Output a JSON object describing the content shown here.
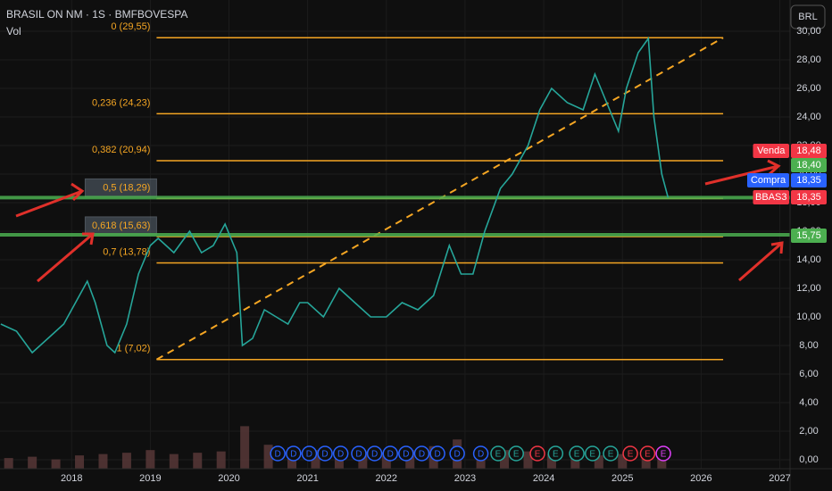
{
  "chart_data": {
    "type": "line",
    "title": "BRASIL ON NM · 1S · BMFBOVESPA",
    "volume_label": "Vol",
    "currency_button": "BRL",
    "x": [
      2017.1,
      2017.3,
      2017.5,
      2017.7,
      2017.9,
      2018.1,
      2018.2,
      2018.3,
      2018.45,
      2018.55,
      2018.7,
      2018.85,
      2019.0,
      2019.1,
      2019.3,
      2019.5,
      2019.65,
      2019.8,
      2019.95,
      2020.1,
      2020.17,
      2020.3,
      2020.45,
      2020.6,
      2020.75,
      2020.9,
      2021.0,
      2021.2,
      2021.4,
      2021.6,
      2021.8,
      2022.0,
      2022.2,
      2022.4,
      2022.6,
      2022.8,
      2022.95,
      2023.1,
      2023.25,
      2023.45,
      2023.6,
      2023.8,
      2023.95,
      2024.1,
      2024.3,
      2024.5,
      2024.65,
      2024.8,
      2024.95,
      2025.05,
      2025.2,
      2025.33,
      2025.4,
      2025.5,
      2025.58
    ],
    "series": [
      {
        "name": "BBAS3",
        "color": "#26a69a",
        "values": [
          9.5,
          9,
          7.5,
          8.5,
          9.5,
          11.5,
          12.5,
          11,
          8,
          7.5,
          9.5,
          13,
          15,
          15.5,
          14.5,
          16,
          14.5,
          15,
          16.5,
          14.5,
          8,
          8.5,
          10.5,
          10,
          9.5,
          11,
          11,
          10,
          12,
          11,
          10,
          10,
          11,
          10.5,
          11.5,
          15,
          13,
          13,
          16,
          19,
          20,
          22,
          24.5,
          26,
          25,
          24.5,
          27,
          25,
          23,
          26,
          28.5,
          29.5,
          24,
          20,
          18.35
        ]
      }
    ],
    "volume": {
      "color": "#5b3a3a",
      "x": [
        2017.2,
        2017.5,
        2017.8,
        2018.1,
        2018.4,
        2018.7,
        2019.0,
        2019.3,
        2019.6,
        2019.9,
        2020.2,
        2020.5,
        2020.8,
        2021.1,
        2021.4,
        2021.7,
        2022.0,
        2022.3,
        2022.6,
        2022.9,
        2023.2,
        2023.5,
        2023.8,
        2024.1,
        2024.4,
        2024.7,
        2025.0,
        2025.3,
        2025.5
      ],
      "values": [
        40,
        45,
        35,
        50,
        55,
        60,
        70,
        55,
        60,
        65,
        160,
        90,
        80,
        70,
        75,
        65,
        60,
        70,
        85,
        110,
        75,
        70,
        65,
        55,
        60,
        50,
        55,
        70,
        60
      ],
      "ylim": [
        0,
        420
      ]
    },
    "xlim": [
      2017.09,
      2027.13
    ],
    "xticks": [
      2018,
      2019,
      2020,
      2021,
      2022,
      2023,
      2024,
      2025,
      2026,
      2027
    ],
    "ylim": [
      -0.625,
      32.19
    ],
    "yticks": [
      {
        "value": 0,
        "label": "0,00"
      },
      {
        "value": 2,
        "label": "2,00"
      },
      {
        "value": 4,
        "label": "4,00"
      },
      {
        "value": 6,
        "label": "6,00"
      },
      {
        "value": 8,
        "label": "8,00"
      },
      {
        "value": 10,
        "label": "10,00"
      },
      {
        "value": 12,
        "label": "12,00"
      },
      {
        "value": 14,
        "label": "14,00"
      },
      {
        "value": 16,
        "label": "16,00"
      },
      {
        "value": 18,
        "label": "18,00"
      },
      {
        "value": 20,
        "label": "20,00"
      },
      {
        "value": 22,
        "label": "22,00"
      },
      {
        "value": 24,
        "label": "24,00"
      },
      {
        "value": 26,
        "label": "26,00"
      },
      {
        "value": 28,
        "label": "28,00"
      },
      {
        "value": 30,
        "label": "30,00"
      }
    ],
    "fib": {
      "color": "#f5a623",
      "xlim": [
        2019.08,
        2026.28
      ],
      "levels": [
        {
          "value": 29.55,
          "label": "0 (29,55)"
        },
        {
          "value": 24.23,
          "label": "0,236 (24,23)"
        },
        {
          "value": 20.94,
          "label": "0,382 (20,94)"
        },
        {
          "value": 18.29,
          "label": "0,5 (18,29)"
        },
        {
          "value": 15.63,
          "label": "0,618 (15,63)"
        },
        {
          "value": 13.78,
          "label": "0,7 (13,78)"
        },
        {
          "value": 7.02,
          "label": "1 (7,02)"
        }
      ]
    },
    "trendline": {
      "x": [
        2019.08,
        2026.28
      ],
      "y": [
        7.02,
        29.55
      ],
      "color": "#f5a623"
    },
    "support_lines": {
      "color": "#4caf50",
      "values": [
        18.35,
        15.75
      ]
    },
    "price_badges": [
      {
        "name": "Venda",
        "value": 18.48,
        "label": "18,48",
        "color": "#f23645"
      },
      {
        "value": 18.4,
        "label": "18,40",
        "color": "#4caf50"
      },
      {
        "name": "Compra",
        "value": 18.35,
        "label": "18,35",
        "color": "#2962ff"
      },
      {
        "name": "BBAS3",
        "value": 18.35,
        "label": "18,35",
        "color": "#f23645"
      },
      {
        "value": 15.75,
        "label": "15,75",
        "color": "#4caf50"
      }
    ],
    "events": {
      "x": [
        2020.62,
        2020.82,
        2021.02,
        2021.22,
        2021.42,
        2021.65,
        2021.85,
        2022.05,
        2022.25,
        2022.45,
        2022.65,
        2022.9,
        2023.2,
        2023.42,
        2023.65,
        2023.92,
        2024.15,
        2024.42,
        2024.62,
        2024.85,
        2025.1,
        2025.32,
        2025.52
      ],
      "labels": [
        "D",
        "D",
        "D",
        "D",
        "D",
        "D",
        "D",
        "D",
        "D",
        "D",
        "D",
        "D",
        "D",
        "E",
        "E",
        "E",
        "E",
        "E",
        "E",
        "E",
        "E",
        "E",
        "E"
      ],
      "colors": [
        "#2962ff",
        "#2962ff",
        "#2962ff",
        "#2962ff",
        "#2962ff",
        "#2962ff",
        "#2962ff",
        "#2962ff",
        "#2962ff",
        "#2962ff",
        "#2962ff",
        "#2962ff",
        "#2962ff",
        "#26a69a",
        "#26a69a",
        "#f23645",
        "#26a69a",
        "#26a69a",
        "#26a69a",
        "#26a69a",
        "#f23645",
        "#f23645",
        "#e040fb"
      ]
    }
  }
}
